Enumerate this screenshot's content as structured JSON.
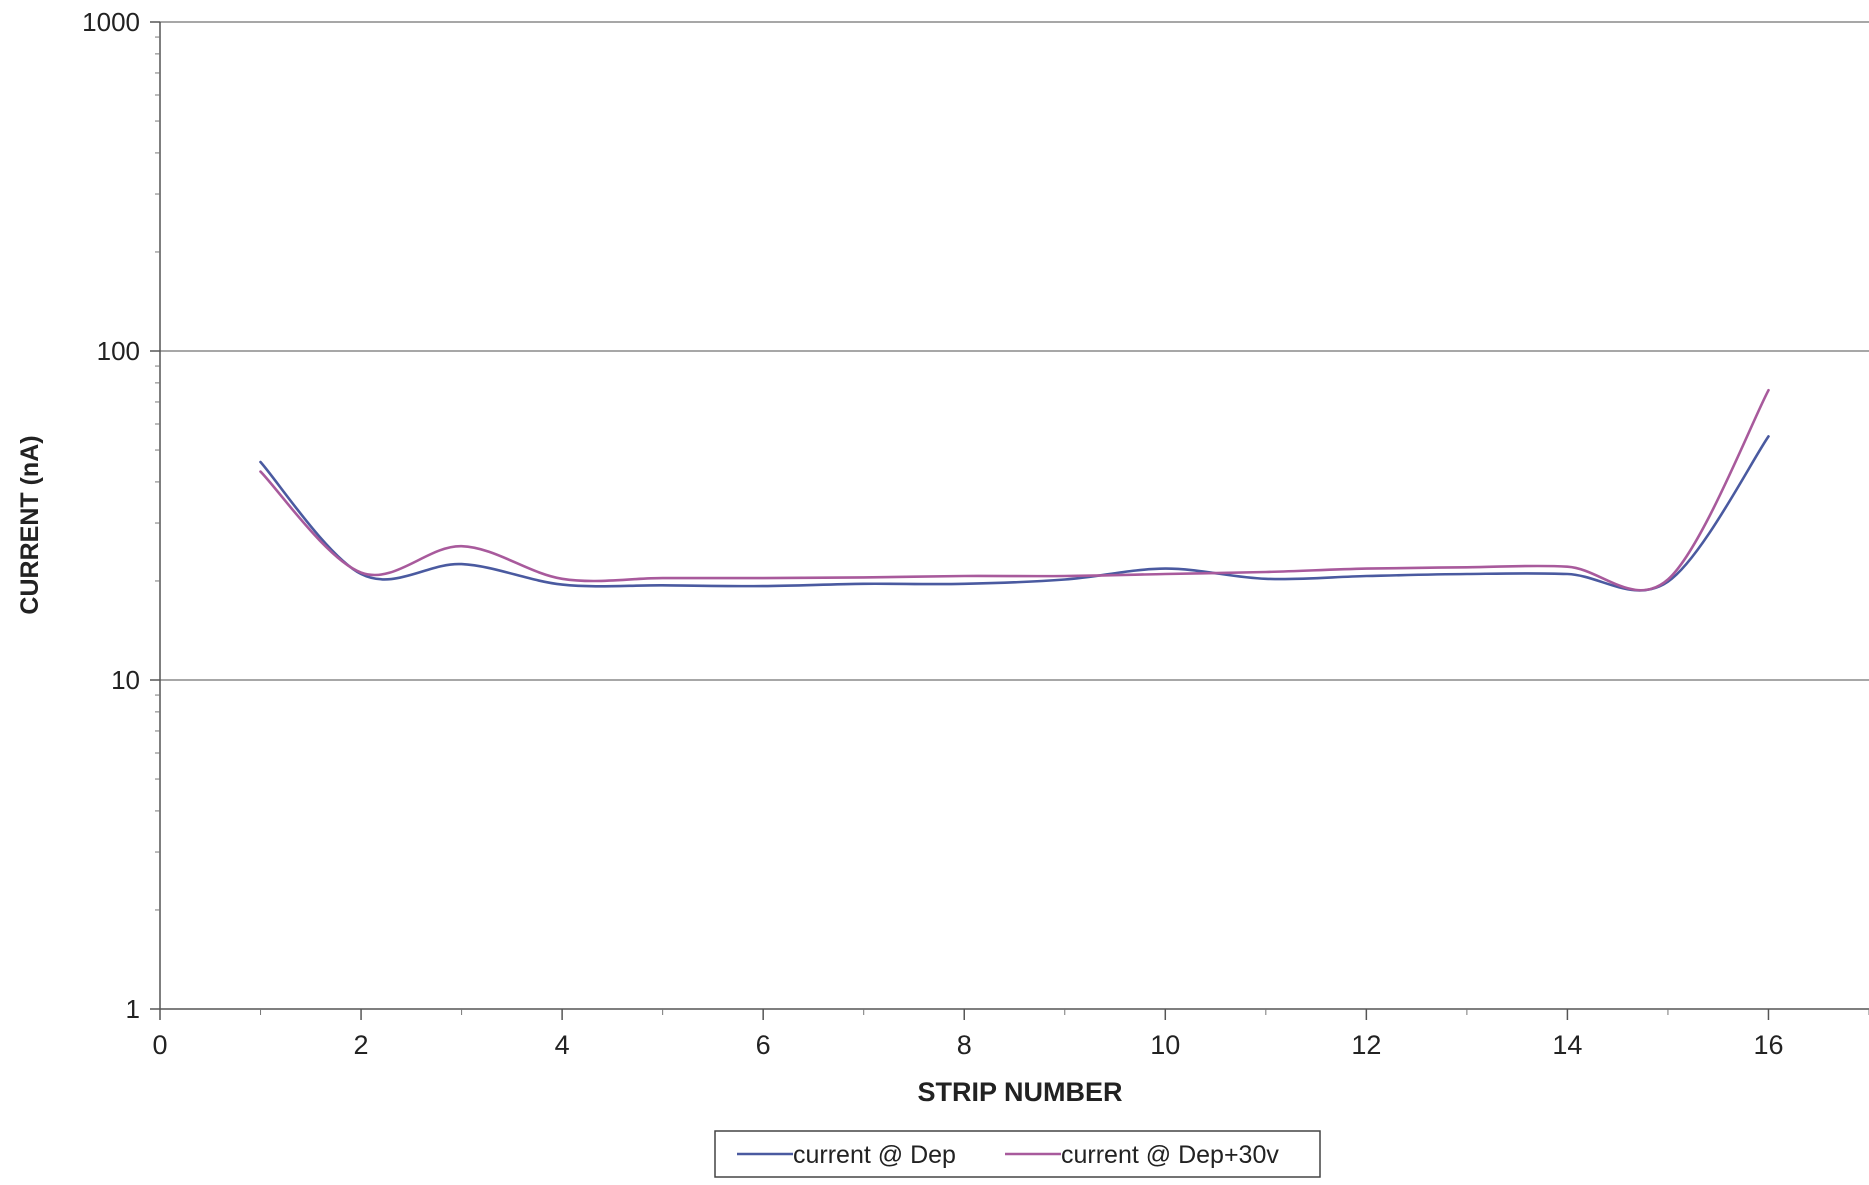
{
  "chart_data": {
    "type": "line",
    "title": "",
    "xlabel": "STRIP NUMBER",
    "ylabel": "CURRENT (nA)",
    "xlim": [
      0,
      17
    ],
    "ylim": [
      1,
      1000
    ],
    "y_scale": "log",
    "x_ticks": [
      "0",
      "2",
      "4",
      "6",
      "8",
      "10",
      "12",
      "14",
      "16"
    ],
    "y_ticks": [
      "1",
      "10",
      "100",
      "1000"
    ],
    "grid": "horizontal major gridlines",
    "legend_position": "bottom-center",
    "x": [
      1,
      2,
      3,
      4,
      5,
      6,
      7,
      8,
      9,
      10,
      11,
      12,
      13,
      14,
      15,
      16
    ],
    "series": [
      {
        "name": "current @ Dep",
        "color": "#4a5aa0",
        "values": [
          46,
          21,
          22.5,
          19.5,
          19.4,
          19.3,
          19.6,
          19.6,
          20.2,
          21.8,
          20.3,
          20.7,
          21,
          21,
          19.9,
          55
        ]
      },
      {
        "name": "current @ Dep+30v",
        "color": "#a85a9c",
        "values": [
          43,
          21.2,
          25.5,
          20.3,
          20.4,
          20.4,
          20.5,
          20.7,
          20.7,
          21,
          21.3,
          21.8,
          22,
          22.1,
          20.2,
          76
        ]
      }
    ]
  }
}
